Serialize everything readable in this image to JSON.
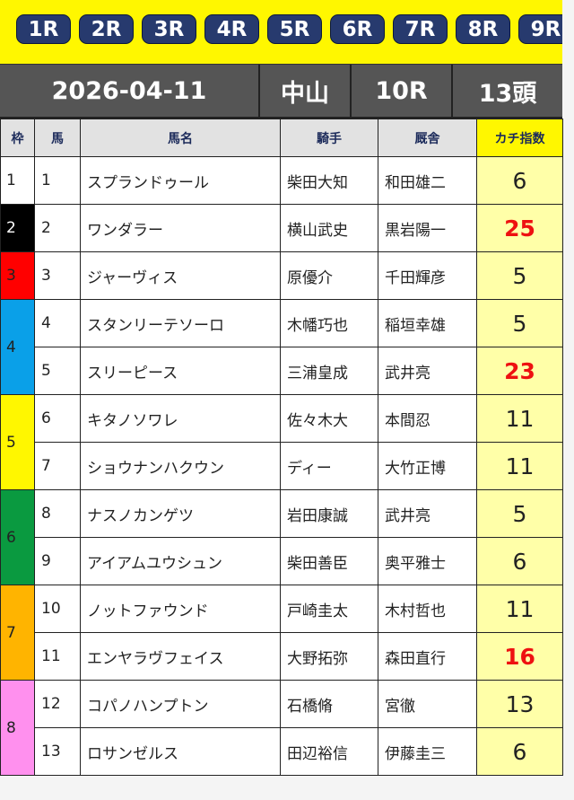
{
  "races": [
    "1R",
    "2R",
    "3R",
    "4R",
    "5R",
    "6R",
    "7R",
    "8R",
    "9R"
  ],
  "info": {
    "date": "2026-04-11",
    "venue": "中山",
    "race": "10R",
    "heads": "13頭"
  },
  "headers": {
    "waku": "枠",
    "uma": "馬",
    "name": "馬名",
    "jockey": "騎手",
    "trainer": "厩舎",
    "kachi": "カチ指数"
  },
  "waku_colors": {
    "1": "#ffffff",
    "2": "#000000",
    "3": "#ff0000",
    "4": "#0aa0e8",
    "5": "#fff700",
    "6": "#0a9a40",
    "7": "#ffb400",
    "8": "#ff90ee"
  },
  "frames": [
    {
      "waku": "1",
      "rows": 1,
      "color": "#ffffff",
      "text": "#222"
    },
    {
      "waku": "2",
      "rows": 1,
      "color": "#000000",
      "text": "#fff"
    },
    {
      "waku": "3",
      "rows": 1,
      "color": "#ff0000",
      "text": "#222"
    },
    {
      "waku": "4",
      "rows": 2,
      "color": "#0aa0e8",
      "text": "#222"
    },
    {
      "waku": "5",
      "rows": 2,
      "color": "#fff700",
      "text": "#222"
    },
    {
      "waku": "6",
      "rows": 2,
      "color": "#0a9a40",
      "text": "#222"
    },
    {
      "waku": "7",
      "rows": 2,
      "color": "#ffb400",
      "text": "#222"
    },
    {
      "waku": "8",
      "rows": 2,
      "color": "#ff90ee",
      "text": "#222"
    }
  ],
  "horses": [
    {
      "no": "1",
      "name": "スプランドゥール",
      "jockey": "柴田大知",
      "trainer": "和田雄二",
      "kachi": "6",
      "hot": false
    },
    {
      "no": "2",
      "name": "ワンダラー",
      "jockey": "横山武史",
      "trainer": "黒岩陽一",
      "kachi": "25",
      "hot": true
    },
    {
      "no": "3",
      "name": "ジャーヴィス",
      "jockey": "原優介",
      "trainer": "千田輝彦",
      "kachi": "5",
      "hot": false
    },
    {
      "no": "4",
      "name": "スタンリーテソーロ",
      "jockey": "木幡巧也",
      "trainer": "稲垣幸雄",
      "kachi": "5",
      "hot": false
    },
    {
      "no": "5",
      "name": "スリーピース",
      "jockey": "三浦皇成",
      "trainer": "武井亮",
      "kachi": "23",
      "hot": true
    },
    {
      "no": "6",
      "name": "キタノソワレ",
      "jockey": "佐々木大",
      "trainer": "本間忍",
      "kachi": "11",
      "hot": false
    },
    {
      "no": "7",
      "name": "ショウナンハクウン",
      "jockey": "ディー",
      "trainer": "大竹正博",
      "kachi": "11",
      "hot": false
    },
    {
      "no": "8",
      "name": "ナスノカンゲツ",
      "jockey": "岩田康誠",
      "trainer": "武井亮",
      "kachi": "5",
      "hot": false
    },
    {
      "no": "9",
      "name": "アイアムユウシュン",
      "jockey": "柴田善臣",
      "trainer": "奥平雅士",
      "kachi": "6",
      "hot": false
    },
    {
      "no": "10",
      "name": "ノットファウンド",
      "jockey": "戸崎圭太",
      "trainer": "木村哲也",
      "kachi": "11",
      "hot": false
    },
    {
      "no": "11",
      "name": "エンヤラヴフェイス",
      "jockey": "大野拓弥",
      "trainer": "森田直行",
      "kachi": "16",
      "hot": true
    },
    {
      "no": "12",
      "name": "コパノハンプトン",
      "jockey": "石橋脩",
      "trainer": "宮徹",
      "kachi": "13",
      "hot": false
    },
    {
      "no": "13",
      "name": "ロサンゼルス",
      "jockey": "田辺裕信",
      "trainer": "伊藤圭三",
      "kachi": "6",
      "hot": false
    }
  ]
}
